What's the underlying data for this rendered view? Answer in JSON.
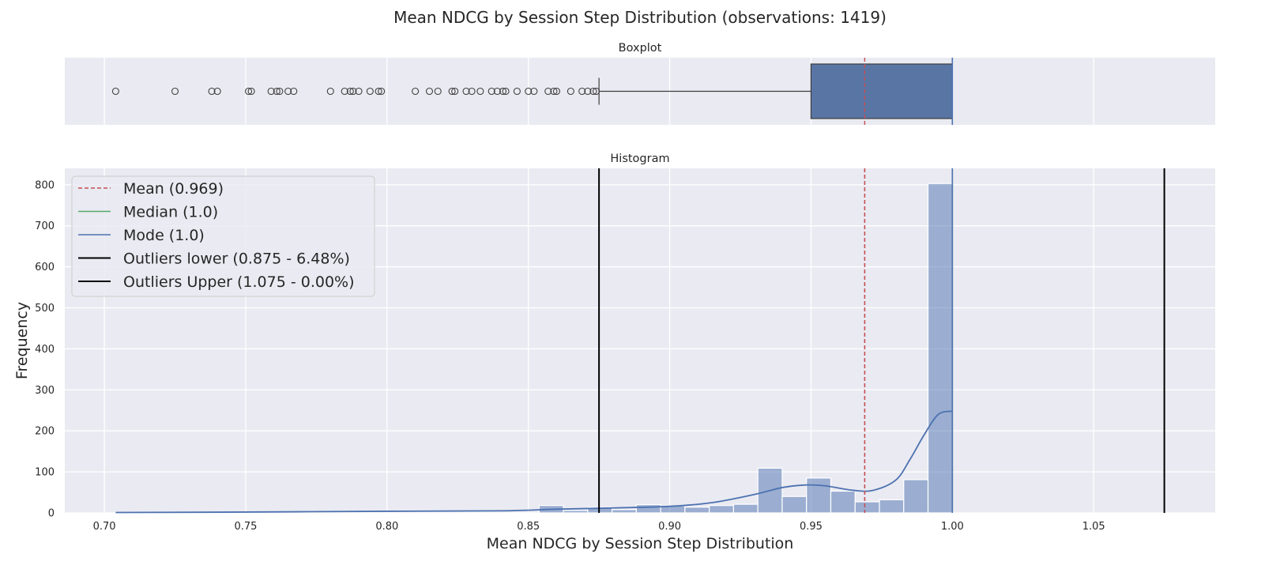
{
  "chart_data": {
    "type": "histogram",
    "title": "Mean NDCG by Session Step Distribution (observations: 1419)",
    "xlabel": "Mean NDCG by Session Step Distribution",
    "ylabel": "Frequency",
    "xlim": [
      0.686,
      1.093
    ],
    "x_ticks": [
      "0.70",
      "0.75",
      "0.80",
      "0.85",
      "0.90",
      "0.95",
      "1.00",
      "1.05"
    ],
    "boxplot": {
      "title": "Boxplot",
      "q1": 0.95,
      "median": 1.0,
      "q3": 1.0,
      "whisker_low": 0.875,
      "whisker_high": 1.0,
      "box_color": "#5975a4",
      "outliers": [
        0.704,
        0.725,
        0.738,
        0.74,
        0.751,
        0.752,
        0.759,
        0.761,
        0.762,
        0.765,
        0.767,
        0.78,
        0.785,
        0.787,
        0.788,
        0.79,
        0.794,
        0.797,
        0.798,
        0.81,
        0.815,
        0.818,
        0.823,
        0.824,
        0.828,
        0.83,
        0.833,
        0.837,
        0.839,
        0.841,
        0.842,
        0.846,
        0.85,
        0.852,
        0.857,
        0.859,
        0.86,
        0.865,
        0.869,
        0.871,
        0.873,
        0.874
      ]
    },
    "histogram": {
      "title": "Histogram",
      "ylim": [
        0,
        840
      ],
      "y_ticks": [
        0,
        100,
        200,
        300,
        400,
        500,
        600,
        700,
        800
      ],
      "bin_width": 0.0086,
      "bar_color": "#4c72b0",
      "bins": [
        {
          "x": 0.8538,
          "count": 18
        },
        {
          "x": 0.8624,
          "count": 6
        },
        {
          "x": 0.871,
          "count": 13
        },
        {
          "x": 0.8796,
          "count": 8
        },
        {
          "x": 0.8882,
          "count": 20
        },
        {
          "x": 0.8968,
          "count": 17
        },
        {
          "x": 0.9054,
          "count": 14
        },
        {
          "x": 0.914,
          "count": 18
        },
        {
          "x": 0.9226,
          "count": 21
        },
        {
          "x": 0.9312,
          "count": 109
        },
        {
          "x": 0.9398,
          "count": 40
        },
        {
          "x": 0.9484,
          "count": 85
        },
        {
          "x": 0.957,
          "count": 53
        },
        {
          "x": 0.9656,
          "count": 27
        },
        {
          "x": 0.9742,
          "count": 32
        },
        {
          "x": 0.9828,
          "count": 81
        },
        {
          "x": 0.9914,
          "count": 803
        }
      ],
      "kde": [
        [
          0.704,
          1
        ],
        [
          0.75,
          2
        ],
        [
          0.8,
          4
        ],
        [
          0.84,
          5
        ],
        [
          0.86,
          9
        ],
        [
          0.88,
          12
        ],
        [
          0.9,
          16
        ],
        [
          0.915,
          25
        ],
        [
          0.93,
          45
        ],
        [
          0.94,
          62
        ],
        [
          0.948,
          68
        ],
        [
          0.955,
          66
        ],
        [
          0.965,
          55
        ],
        [
          0.972,
          55
        ],
        [
          0.98,
          80
        ],
        [
          0.985,
          130
        ],
        [
          0.99,
          190
        ],
        [
          0.995,
          240
        ],
        [
          1.0,
          248
        ]
      ],
      "lines": [
        {
          "label": "Mean (0.969)",
          "x": 0.969,
          "color": "#c44e52",
          "style": "dashed"
        },
        {
          "label": "Median (1.0)",
          "x": 1.0,
          "color": "#55a868",
          "style": "solid"
        },
        {
          "label": "Mode (1.0)",
          "x": 1.0,
          "color": "#4c72b0",
          "style": "solid"
        },
        {
          "label": "Outliers lower (0.875 - 6.48%)",
          "x": 0.875,
          "color": "#000000",
          "style": "solid"
        },
        {
          "label": "Outliers Upper (1.075 - 0.00%)",
          "x": 1.075,
          "color": "#000000",
          "style": "solid"
        }
      ]
    }
  }
}
